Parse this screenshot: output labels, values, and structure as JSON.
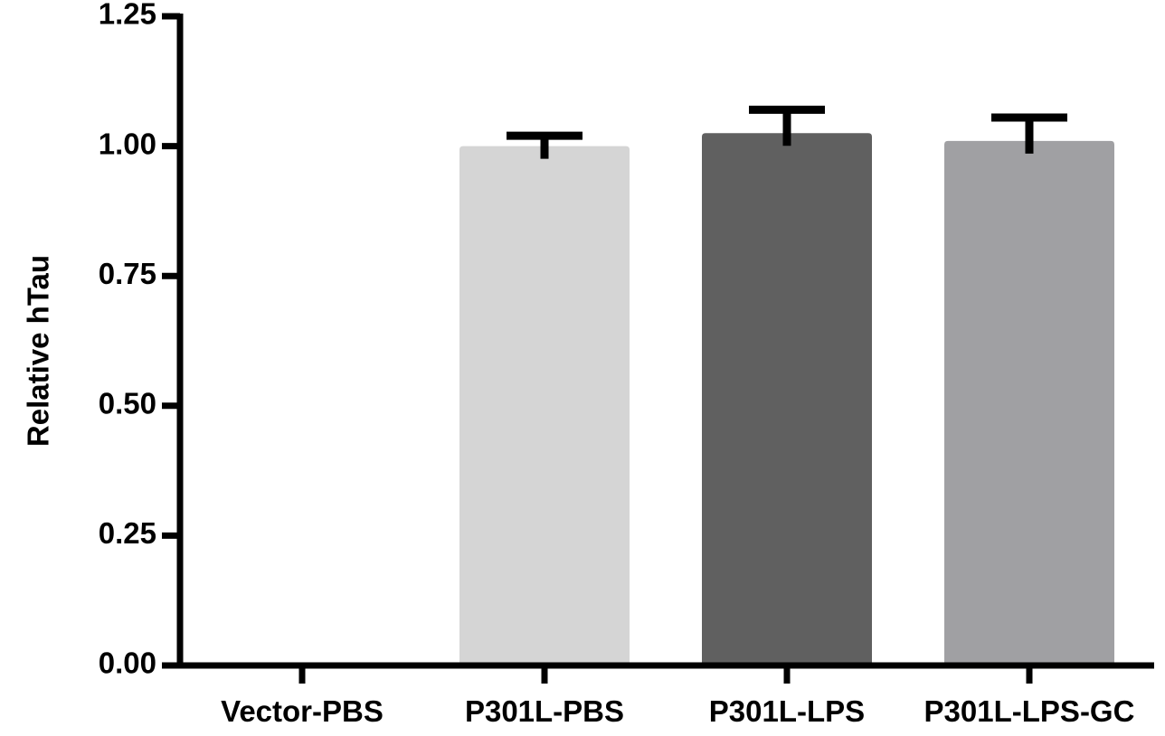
{
  "chart_data": {
    "type": "bar",
    "title": "",
    "xlabel": "",
    "ylabel": "Relative hTau",
    "ylim": [
      0,
      1.25
    ],
    "yticks": [
      "0.00",
      "0.25",
      "0.50",
      "0.75",
      "1.00",
      "1.25"
    ],
    "categories": [
      "Vector-PBS",
      "P301L-PBS",
      "P301L-LPS",
      "P301L-LPS-GC"
    ],
    "values": [
      0,
      1.0,
      1.025,
      1.01
    ],
    "errors": [
      0,
      0.02,
      0.045,
      0.045
    ],
    "colors": [
      "#ffffff",
      "#d5d5d5",
      "#606060",
      "#a0a0a3"
    ],
    "grid": false,
    "legend": "none"
  }
}
